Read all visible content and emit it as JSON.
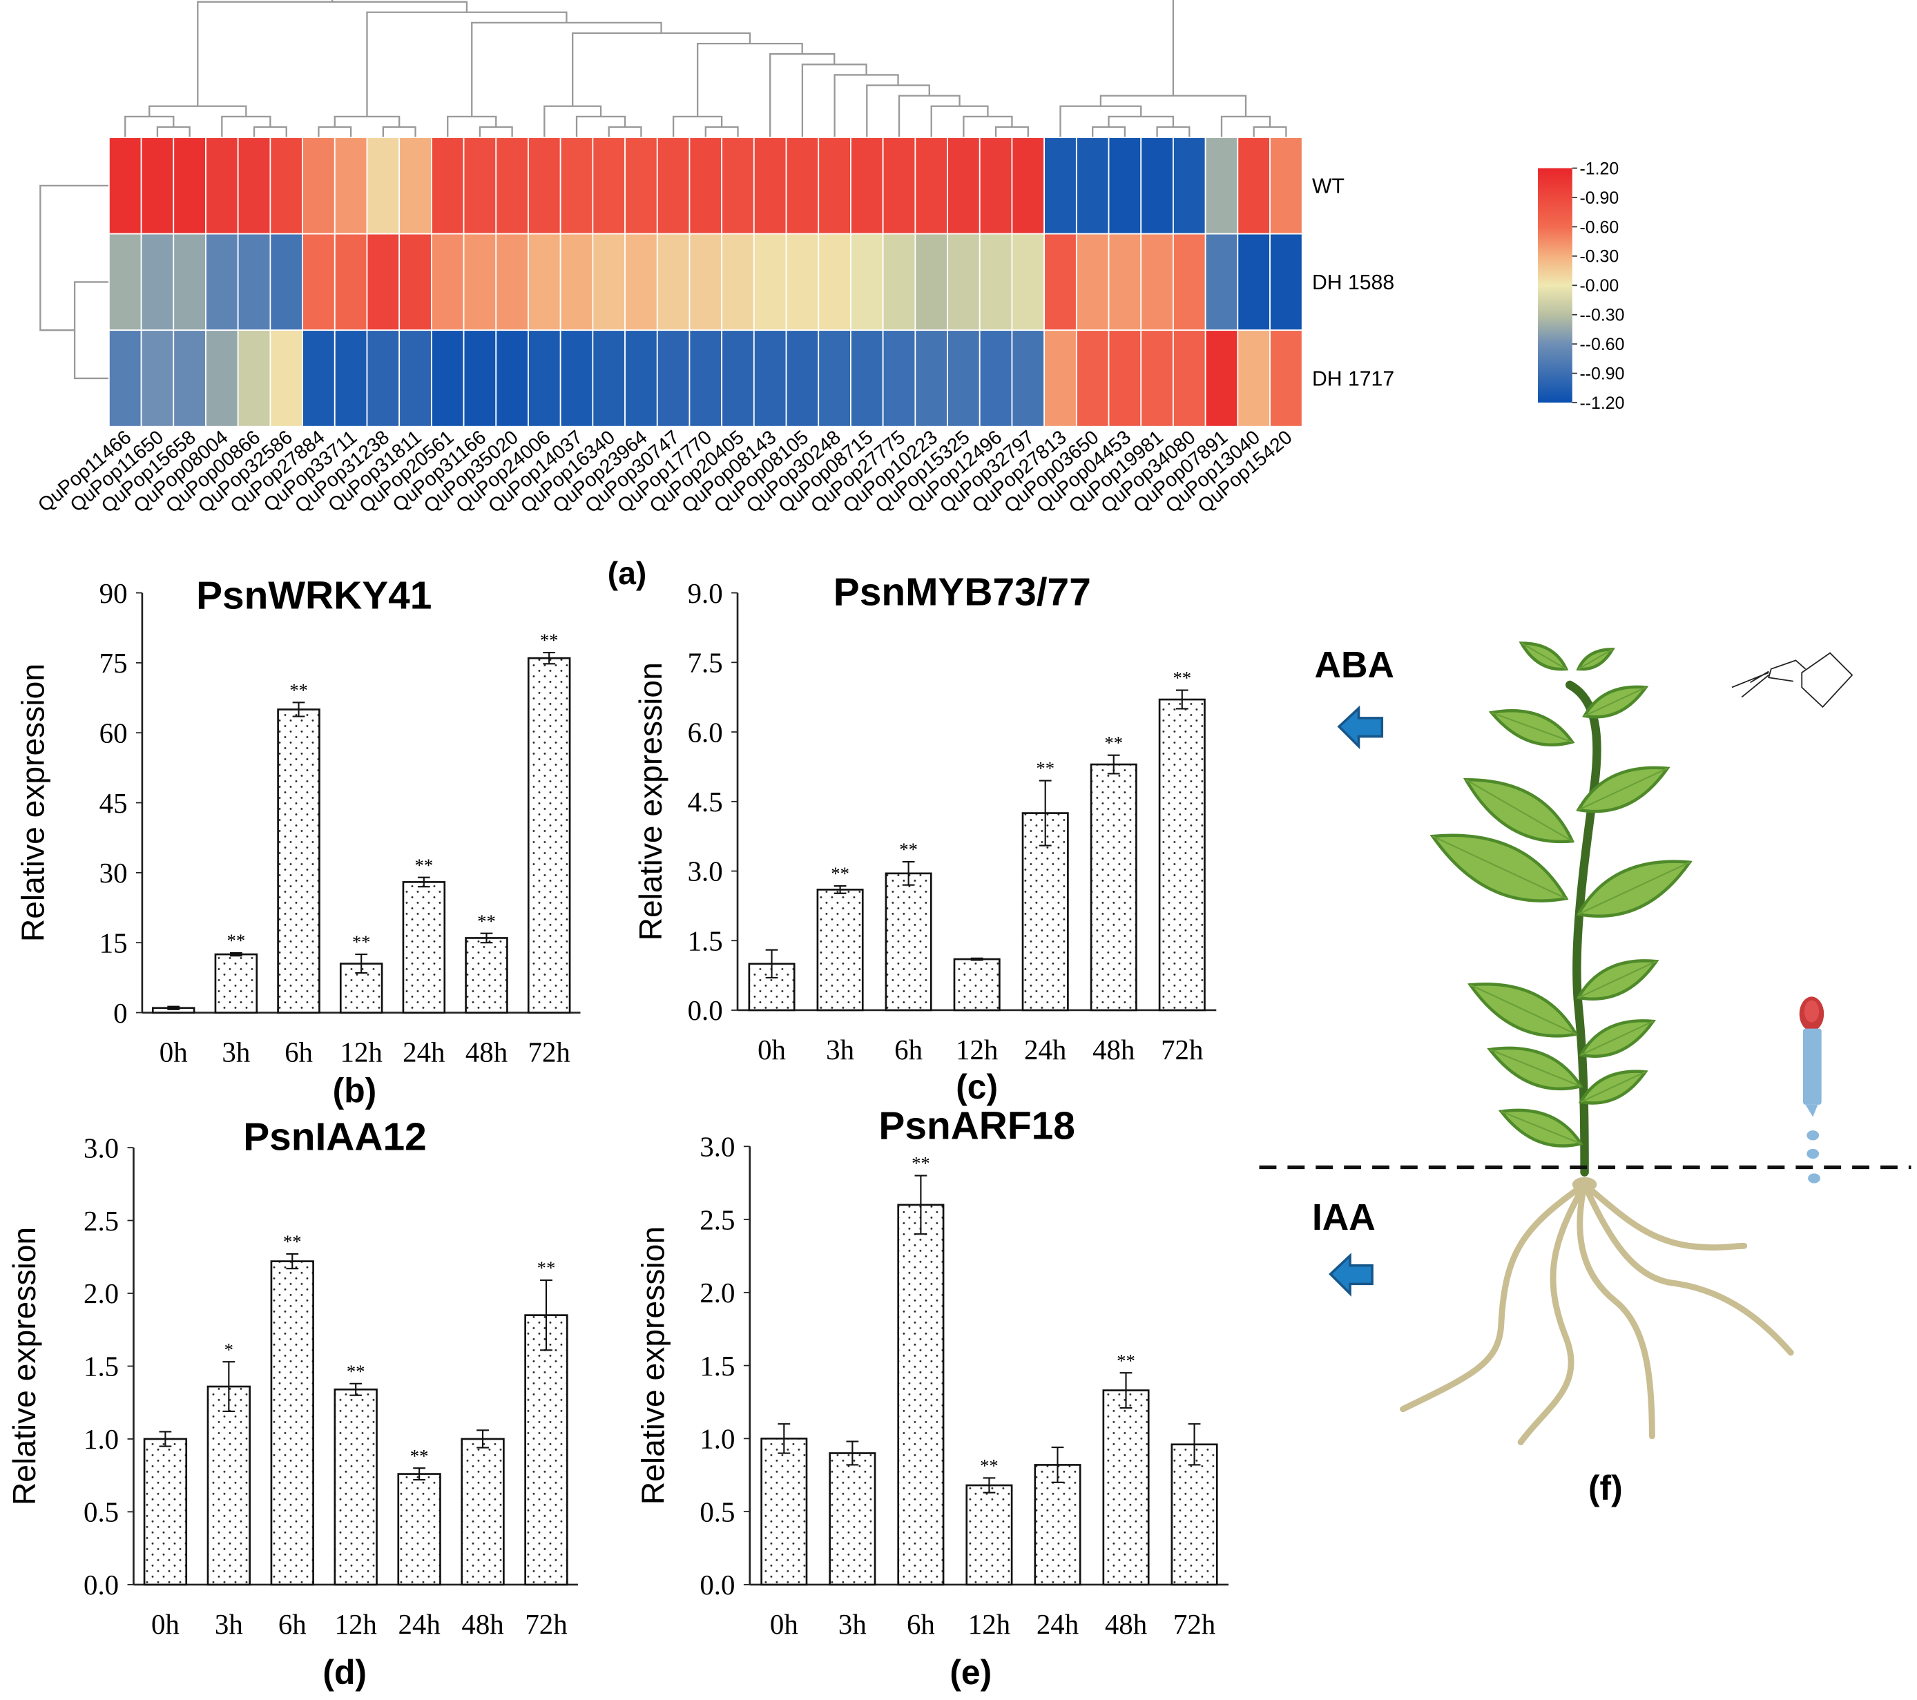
{
  "chart_data": [
    {
      "type": "heatmap",
      "panel_label": "(a)",
      "columns": [
        "QuPop11466",
        "QuPop11650",
        "QuPop15658",
        "QuPop08004",
        "QuPop00866",
        "QuPop32586",
        "QuPop27884",
        "QuPop33711",
        "QuPop31238",
        "QuPop31811",
        "QuPop20561",
        "QuPop31166",
        "QuPop35020",
        "QuPop24006",
        "QuPop14037",
        "QuPop16340",
        "QuPop23964",
        "QuPop30747",
        "QuPop17770",
        "QuPop20405",
        "QuPop08143",
        "QuPop08105",
        "QuPop30248",
        "QuPop08715",
        "QuPop27775",
        "QuPop10223",
        "QuPop15325",
        "QuPop12496",
        "QuPop32797",
        "QuPop27813",
        "QuPop03650",
        "QuPop04453",
        "QuPop19981",
        "QuPop34080",
        "QuPop07891",
        "QuPop13040",
        "QuPop15420"
      ],
      "rows": [
        "WT",
        "DH  1588",
        "DH  1717"
      ],
      "values": [
        [
          1.1,
          1.1,
          1.1,
          1.0,
          1.0,
          0.9,
          0.5,
          0.4,
          0.1,
          0.3,
          0.9,
          0.85,
          0.85,
          0.85,
          0.8,
          0.8,
          0.8,
          0.85,
          0.9,
          0.85,
          0.9,
          0.9,
          0.9,
          0.95,
          0.95,
          0.95,
          1.0,
          1.0,
          1.05,
          -1.1,
          -1.1,
          -1.15,
          -1.15,
          -1.1,
          -0.4,
          0.9,
          0.5
        ],
        [
          -0.4,
          -0.5,
          -0.45,
          -0.7,
          -0.75,
          -0.85,
          0.6,
          0.65,
          0.95,
          0.9,
          0.45,
          0.4,
          0.4,
          0.3,
          0.3,
          0.2,
          0.25,
          0.15,
          0.15,
          0.1,
          0.05,
          0.05,
          0.05,
          -0.05,
          -0.15,
          -0.3,
          -0.2,
          -0.15,
          -0.1,
          0.75,
          0.4,
          0.4,
          0.45,
          0.55,
          -0.8,
          -1.15,
          -1.15
        ],
        [
          -0.75,
          -0.6,
          -0.65,
          -0.45,
          -0.2,
          0.05,
          -1.1,
          -1.1,
          -1.0,
          -1.0,
          -1.15,
          -1.15,
          -1.15,
          -1.1,
          -1.1,
          -1.05,
          -1.05,
          -1.0,
          -1.0,
          -1.0,
          -1.0,
          -1.0,
          -0.95,
          -0.95,
          -0.9,
          -0.85,
          -0.85,
          -0.9,
          -0.85,
          0.4,
          0.7,
          0.75,
          0.7,
          0.7,
          1.1,
          0.3,
          0.6
        ]
      ],
      "legend": {
        "ticks": [
          "-1.20",
          "-0.90",
          "-0.60",
          "-0.30",
          "-0.00",
          "--0.30",
          "--0.60",
          "--0.90",
          "--1.20"
        ],
        "range": [
          -1.2,
          1.2
        ]
      },
      "colors": {
        "low": "#0a4fb0",
        "mid": "#efe8b0",
        "high": "#e8262a"
      }
    },
    {
      "type": "bar",
      "title": "PsnWRKY41",
      "panel_label": "(b)",
      "ylabel": "Relative expression",
      "categories": [
        "0h",
        "3h",
        "6h",
        "12h",
        "24h",
        "48h",
        "72h"
      ],
      "values": [
        1.0,
        12.5,
        65,
        10.5,
        28,
        16,
        76
      ],
      "errors": [
        0.3,
        0.3,
        1.5,
        2.0,
        1.0,
        1.0,
        1.2
      ],
      "significance": [
        "",
        "**",
        "**",
        "**",
        "**",
        "**",
        "**"
      ],
      "ylim": [
        0,
        90
      ],
      "yticks": [
        "0",
        "15",
        "30",
        "45",
        "60",
        "75",
        "90"
      ]
    },
    {
      "type": "bar",
      "title": "PsnMYB73/77",
      "panel_label": "(c)",
      "ylabel": "Relative expression",
      "categories": [
        "0h",
        "3h",
        "6h",
        "12h",
        "24h",
        "48h",
        "72h"
      ],
      "values": [
        1.0,
        2.6,
        2.95,
        1.1,
        4.25,
        5.3,
        6.7
      ],
      "errors": [
        0.3,
        0.08,
        0.25,
        0.02,
        0.7,
        0.2,
        0.2
      ],
      "significance": [
        "",
        "**",
        "**",
        "",
        "**",
        "**",
        "**"
      ],
      "ylim": [
        0,
        9
      ],
      "yticks": [
        "0.0",
        "1.5",
        "3.0",
        "4.5",
        "6.0",
        "7.5",
        "9.0"
      ]
    },
    {
      "type": "bar",
      "title": "PsnIAA12",
      "panel_label": "(d)",
      "ylabel": "Relative expression",
      "categories": [
        "0h",
        "3h",
        "6h",
        "12h",
        "24h",
        "48h",
        "72h"
      ],
      "values": [
        1.0,
        1.36,
        2.22,
        1.34,
        0.76,
        1.0,
        1.85
      ],
      "errors": [
        0.05,
        0.17,
        0.05,
        0.04,
        0.04,
        0.06,
        0.24
      ],
      "significance": [
        "",
        "*",
        "**",
        "**",
        "**",
        "",
        "**"
      ],
      "ylim": [
        0,
        3
      ],
      "yticks": [
        "0.0",
        "0.5",
        "1.0",
        "1.5",
        "2.0",
        "2.5",
        "3.0"
      ]
    },
    {
      "type": "bar",
      "title": "PsnARF18",
      "panel_label": "(e)",
      "ylabel": "Relative expression",
      "categories": [
        "0h",
        "3h",
        "6h",
        "12h",
        "24h",
        "48h",
        "72h"
      ],
      "values": [
        1.0,
        0.9,
        2.6,
        0.68,
        0.82,
        1.33,
        0.96
      ],
      "errors": [
        0.1,
        0.08,
        0.2,
        0.05,
        0.12,
        0.12,
        0.14
      ],
      "significance": [
        "",
        "",
        "**",
        "**",
        "",
        "**",
        ""
      ],
      "ylim": [
        0,
        3
      ],
      "yticks": [
        "0.0",
        "0.5",
        "1.0",
        "1.5",
        "2.0",
        "2.5",
        "3.0"
      ]
    }
  ],
  "illustration": {
    "upper_label": "ABA",
    "lower_label": "IAA",
    "panel_label": "(f)"
  }
}
